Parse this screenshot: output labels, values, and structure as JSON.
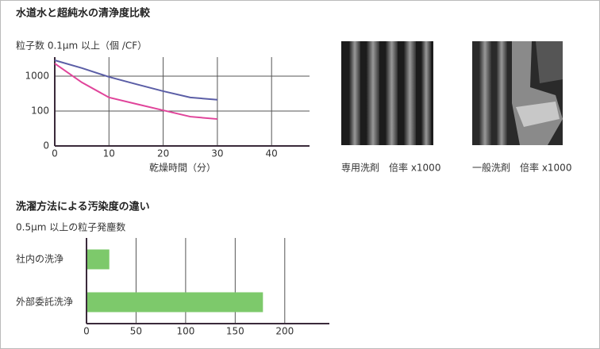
{
  "chart_data": [
    {
      "type": "line",
      "title": "水道水と超純水の清浄度比較",
      "ylabel": "粒子数 0.1μm 以上（個 /CF）",
      "xlabel": "乾燥時間（分）",
      "x": [
        0,
        5,
        10,
        15,
        20,
        25,
        30
      ],
      "series": [
        {
          "color": "#5b5ea6",
          "values": [
            2840,
            1700,
            950,
            590,
            370,
            245,
            210
          ]
        },
        {
          "color": "#e0449a",
          "values": [
            2300,
            660,
            245,
            160,
            105,
            69,
            59
          ]
        }
      ],
      "xlim": [
        0,
        47
      ],
      "xticks": [
        0,
        10,
        20,
        30,
        40
      ],
      "ylim": [
        10,
        3500
      ],
      "yticks": [
        {
          "value": 10,
          "label": "0"
        },
        100,
        1000
      ],
      "log_y": true,
      "grid": true
    },
    {
      "type": "bar",
      "orientation": "horizontal",
      "title": "洗濯方法による汚染度の違い",
      "subtitle": "0.5μm 以上の粒子発塵数",
      "categories": [
        "社内の洗浄",
        "外部委託洗浄"
      ],
      "values": [
        23,
        178
      ],
      "color": "#7dc96b",
      "xlim": [
        0,
        245
      ],
      "xticks": [
        0,
        50,
        100,
        150,
        200
      ],
      "grid": true
    }
  ],
  "photos": [
    {
      "caption": "専用洗剤　倍率 x1000"
    },
    {
      "caption": "一般洗剤　倍率 x1000"
    }
  ]
}
